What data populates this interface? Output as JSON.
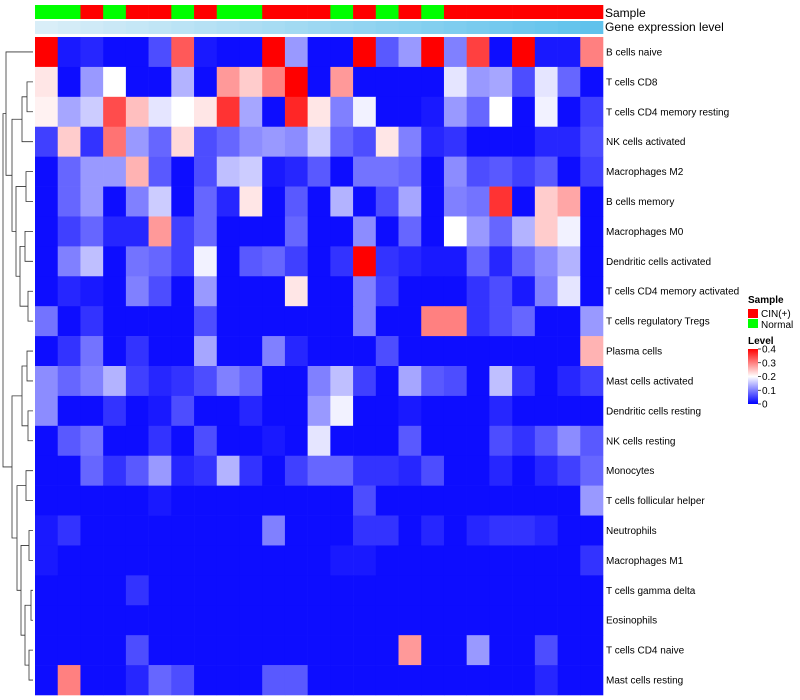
{
  "chart_data": {
    "type": "heatmap",
    "row_labels": [
      "B cells naive",
      "T cells CD8",
      "T cells CD4 memory resting",
      "NK cells activated",
      "Macrophages M2",
      "B cells memory",
      "Macrophages M0",
      "Dendritic cells activated",
      "T cells CD4 memory activated",
      "T cells regulatory  Tregs",
      "Plasma cells",
      "Mast cells activated",
      "Dendritic cells resting",
      "NK cells resting",
      "Monocytes",
      "T cells follicular helper",
      "Neutrophils",
      "Macrophages M1",
      "T cells gamma delta",
      "Eosinophils",
      "T cells CD4 naive",
      "Mast cells resting"
    ],
    "column_annotations": {
      "sample": [
        "Normal",
        "Normal",
        "CIN(+)",
        "Normal",
        "CIN(+)",
        "CIN(+)",
        "Normal",
        "CIN(+)",
        "Normal",
        "Normal",
        "CIN(+)",
        "CIN(+)",
        "CIN(+)",
        "Normal",
        "CIN(+)",
        "Normal",
        "CIN(+)",
        "Normal",
        "CIN(+)",
        "CIN(+)",
        "CIN(+)",
        "CIN(+)",
        "CIN(+)",
        "CIN(+)",
        "CIN(+)"
      ],
      "gene_expression_level": [
        0.0,
        0.04,
        0.08,
        0.12,
        0.16,
        0.2,
        0.24,
        0.28,
        0.32,
        0.36,
        0.4,
        0.44,
        0.48,
        0.52,
        0.56,
        0.6,
        0.64,
        0.68,
        0.72,
        0.76,
        0.8,
        0.84,
        0.88,
        0.92,
        0.96
      ]
    },
    "values": [
      [
        0.4,
        0.02,
        0.03,
        0.01,
        0.01,
        0.06,
        0.33,
        0.02,
        0.01,
        0.01,
        0.4,
        0.12,
        0.01,
        0.01,
        0.4,
        0.07,
        0.12,
        0.4,
        0.1,
        0.35,
        0.01,
        0.4,
        0.02,
        0.02,
        0.3
      ],
      [
        0.22,
        0.01,
        0.12,
        0.2,
        0.01,
        0.01,
        0.14,
        0.01,
        0.28,
        0.24,
        0.3,
        0.4,
        0.01,
        0.28,
        0.01,
        0.01,
        0.01,
        0.01,
        0.18,
        0.12,
        0.13,
        0.06,
        0.18,
        0.08,
        0.01
      ],
      [
        0.21,
        0.13,
        0.16,
        0.34,
        0.25,
        0.18,
        0.2,
        0.22,
        0.36,
        0.13,
        0.01,
        0.37,
        0.22,
        0.1,
        0.19,
        0.01,
        0.01,
        0.02,
        0.12,
        0.08,
        0.2,
        0.01,
        0.19,
        0.01,
        0.05
      ],
      [
        0.05,
        0.24,
        0.04,
        0.31,
        0.12,
        0.08,
        0.23,
        0.06,
        0.08,
        0.11,
        0.12,
        0.11,
        0.16,
        0.08,
        0.06,
        0.22,
        0.1,
        0.03,
        0.04,
        0.01,
        0.01,
        0.01,
        0.03,
        0.03,
        0.06
      ],
      [
        0.01,
        0.08,
        0.12,
        0.12,
        0.26,
        0.07,
        0.01,
        0.06,
        0.15,
        0.16,
        0.02,
        0.03,
        0.07,
        0.01,
        0.09,
        0.09,
        0.08,
        0.01,
        0.11,
        0.06,
        0.07,
        0.05,
        0.07,
        0.01,
        0.05
      ],
      [
        0.01,
        0.08,
        0.12,
        0.01,
        0.1,
        0.16,
        0.01,
        0.08,
        0.03,
        0.22,
        0.01,
        0.07,
        0.01,
        0.14,
        0.01,
        0.06,
        0.13,
        0.01,
        0.1,
        0.09,
        0.36,
        0.01,
        0.24,
        0.27,
        0.01
      ],
      [
        0.01,
        0.05,
        0.08,
        0.03,
        0.03,
        0.28,
        0.05,
        0.08,
        0.01,
        0.01,
        0.01,
        0.08,
        0.01,
        0.01,
        0.11,
        0.01,
        0.08,
        0.01,
        0.2,
        0.12,
        0.08,
        0.14,
        0.24,
        0.19,
        0.01
      ],
      [
        0.01,
        0.1,
        0.15,
        0.01,
        0.09,
        0.08,
        0.05,
        0.19,
        0.01,
        0.07,
        0.08,
        0.05,
        0.01,
        0.04,
        0.4,
        0.04,
        0.03,
        0.02,
        0.02,
        0.08,
        0.03,
        0.08,
        0.11,
        0.14,
        0.01
      ],
      [
        0.01,
        0.03,
        0.02,
        0.01,
        0.1,
        0.06,
        0.01,
        0.12,
        0.01,
        0.01,
        0.01,
        0.22,
        0.01,
        0.01,
        0.1,
        0.05,
        0.01,
        0.01,
        0.01,
        0.04,
        0.06,
        0.02,
        0.1,
        0.18,
        0.01
      ],
      [
        0.09,
        0.01,
        0.04,
        0.01,
        0.01,
        0.01,
        0.01,
        0.06,
        0.01,
        0.01,
        0.01,
        0.01,
        0.01,
        0.01,
        0.1,
        0.01,
        0.01,
        0.3,
        0.3,
        0.04,
        0.06,
        0.08,
        0.01,
        0.01,
        0.12
      ],
      [
        0.01,
        0.04,
        0.09,
        0.01,
        0.04,
        0.01,
        0.01,
        0.13,
        0.01,
        0.01,
        0.1,
        0.03,
        0.01,
        0.01,
        0.01,
        0.06,
        0.01,
        0.01,
        0.01,
        0.01,
        0.01,
        0.01,
        0.01,
        0.01,
        0.26
      ],
      [
        0.11,
        0.08,
        0.1,
        0.14,
        0.05,
        0.03,
        0.04,
        0.06,
        0.1,
        0.08,
        0.01,
        0.01,
        0.1,
        0.15,
        0.05,
        0.01,
        0.13,
        0.07,
        0.06,
        0.01,
        0.15,
        0.04,
        0.01,
        0.03,
        0.05
      ],
      [
        0.11,
        0.01,
        0.01,
        0.04,
        0.01,
        0.02,
        0.06,
        0.01,
        0.01,
        0.03,
        0.01,
        0.01,
        0.12,
        0.19,
        0.01,
        0.01,
        0.02,
        0.01,
        0.01,
        0.01,
        0.03,
        0.01,
        0.01,
        0.01,
        0.01
      ],
      [
        0.01,
        0.07,
        0.09,
        0.01,
        0.01,
        0.04,
        0.01,
        0.06,
        0.01,
        0.01,
        0.02,
        0.01,
        0.18,
        0.01,
        0.01,
        0.01,
        0.07,
        0.01,
        0.01,
        0.01,
        0.06,
        0.04,
        0.07,
        0.11,
        0.07
      ],
      [
        0.01,
        0.01,
        0.08,
        0.04,
        0.07,
        0.12,
        0.03,
        0.04,
        0.14,
        0.04,
        0.01,
        0.05,
        0.08,
        0.08,
        0.04,
        0.04,
        0.03,
        0.06,
        0.01,
        0.01,
        0.03,
        0.01,
        0.03,
        0.05,
        0.08
      ],
      [
        0.01,
        0.01,
        0.01,
        0.01,
        0.01,
        0.02,
        0.01,
        0.01,
        0.01,
        0.01,
        0.01,
        0.01,
        0.01,
        0.01,
        0.06,
        0.01,
        0.01,
        0.01,
        0.01,
        0.01,
        0.01,
        0.01,
        0.01,
        0.01,
        0.12
      ],
      [
        0.02,
        0.04,
        0.01,
        0.01,
        0.01,
        0.01,
        0.01,
        0.01,
        0.01,
        0.01,
        0.1,
        0.01,
        0.01,
        0.01,
        0.04,
        0.04,
        0.01,
        0.03,
        0.01,
        0.03,
        0.04,
        0.04,
        0.03,
        0.01,
        0.01
      ],
      [
        0.02,
        0.01,
        0.01,
        0.01,
        0.01,
        0.01,
        0.01,
        0.01,
        0.01,
        0.01,
        0.01,
        0.01,
        0.01,
        0.02,
        0.02,
        0.01,
        0.01,
        0.01,
        0.01,
        0.01,
        0.01,
        0.01,
        0.01,
        0.01,
        0.04
      ],
      [
        0.01,
        0.01,
        0.01,
        0.01,
        0.04,
        0.01,
        0.01,
        0.01,
        0.01,
        0.01,
        0.01,
        0.01,
        0.01,
        0.01,
        0.01,
        0.01,
        0.01,
        0.01,
        0.01,
        0.01,
        0.01,
        0.01,
        0.01,
        0.01,
        0.01
      ],
      [
        0.01,
        0.01,
        0.01,
        0.01,
        0.01,
        0.01,
        0.01,
        0.01,
        0.01,
        0.01,
        0.01,
        0.01,
        0.01,
        0.01,
        0.01,
        0.01,
        0.01,
        0.01,
        0.01,
        0.01,
        0.01,
        0.01,
        0.01,
        0.01,
        0.01
      ],
      [
        0.01,
        0.01,
        0.01,
        0.01,
        0.06,
        0.01,
        0.01,
        0.01,
        0.01,
        0.01,
        0.01,
        0.01,
        0.01,
        0.01,
        0.01,
        0.01,
        0.28,
        0.01,
        0.01,
        0.12,
        0.01,
        0.01,
        0.06,
        0.01,
        0.01
      ],
      [
        0.01,
        0.3,
        0.01,
        0.01,
        0.03,
        0.08,
        0.06,
        0.01,
        0.01,
        0.01,
        0.07,
        0.07,
        0.01,
        0.01,
        0.01,
        0.01,
        0.01,
        0.01,
        0.01,
        0.01,
        0.01,
        0.01,
        0.03,
        0.01,
        0.01
      ]
    ],
    "color_scale": {
      "min": 0,
      "mid": 0.2,
      "max": 0.4,
      "low_color": "#0000FF",
      "mid_color": "#FFFFFF",
      "high_color": "#FF0000"
    },
    "annotation_rows": {
      "sample": "Sample",
      "expression": "Gene expression level"
    },
    "legend": {
      "sample_title": "Sample",
      "sample_items": [
        {
          "label": "CIN(+)",
          "color": "#FF0000"
        },
        {
          "label": "Normal",
          "color": "#00FF00"
        }
      ],
      "level_title": "Level",
      "level_ticks": [
        "0.4",
        "0.3",
        "0.2",
        "0.1",
        "0"
      ],
      "level_tick_values": [
        0.4,
        0.3,
        0.2,
        0.1,
        0.0
      ],
      "placement": "right"
    },
    "colors": {
      "cin": "#FF0000",
      "normal": "#00FF00",
      "expr_low": "#D9EEF8",
      "expr_high": "#5BC0EB",
      "dendrogram": "#333333"
    },
    "dendrogram": "left"
  }
}
